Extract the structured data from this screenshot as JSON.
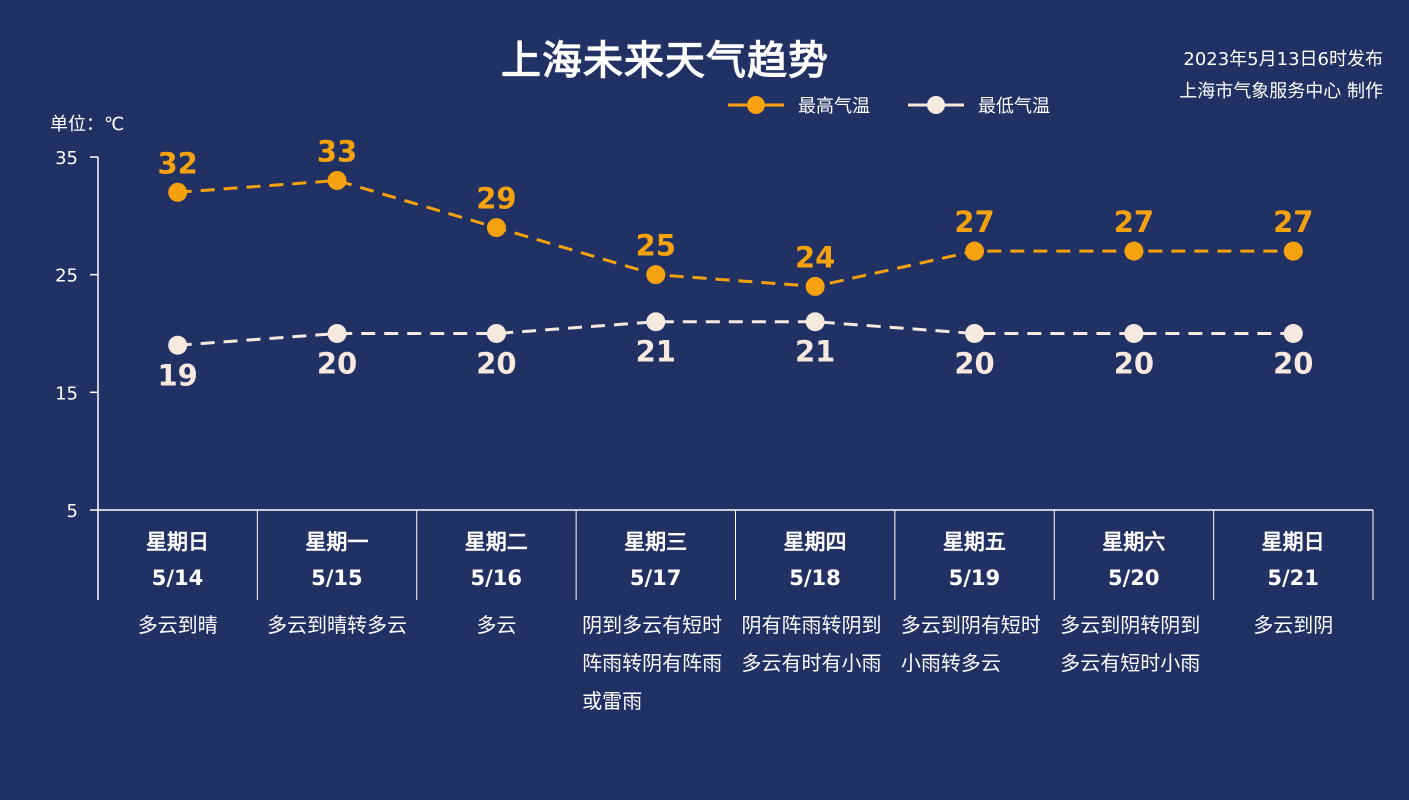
{
  "title": "上海未来天气趋势",
  "publish": {
    "time": "2023年5月13日6时发布",
    "producer": "上海市气象服务中心 制作"
  },
  "legend": {
    "high": "最高气温",
    "low": "最低气温"
  },
  "unit_label": "单位：℃",
  "colors": {
    "background": "#223164",
    "high": "#F5A20E",
    "low": "#F6E9DF",
    "axis": "#FFFFFF"
  },
  "days": [
    {
      "weekday": "星期日",
      "date": "5/14",
      "desc": "多云到晴"
    },
    {
      "weekday": "星期一",
      "date": "5/15",
      "desc": "多云到晴转多云"
    },
    {
      "weekday": "星期二",
      "date": "5/16",
      "desc": "多云"
    },
    {
      "weekday": "星期三",
      "date": "5/17",
      "desc": "阴到多云有短时阵雨转阴有阵雨或雷雨"
    },
    {
      "weekday": "星期四",
      "date": "5/18",
      "desc": "阴有阵雨转阴到多云有时有小雨"
    },
    {
      "weekday": "星期五",
      "date": "5/19",
      "desc": "多云到阴有短时小雨转多云"
    },
    {
      "weekday": "星期六",
      "date": "5/20",
      "desc": "多云到阴转阴到多云有短时小雨"
    },
    {
      "weekday": "星期日",
      "date": "5/21",
      "desc": "多云到阴"
    }
  ],
  "chart_data": {
    "type": "line",
    "title": "上海未来天气趋势",
    "categories": [
      "5/14",
      "5/15",
      "5/16",
      "5/17",
      "5/18",
      "5/19",
      "5/20",
      "5/21"
    ],
    "series": [
      {
        "name": "最高气温",
        "values": [
          32,
          33,
          29,
          25,
          24,
          27,
          27,
          27
        ]
      },
      {
        "name": "最低气温",
        "values": [
          19,
          20,
          20,
          21,
          21,
          20,
          20,
          20
        ]
      }
    ],
    "ylabel": "单位：℃",
    "ylim": [
      5,
      35
    ],
    "yticks": [
      5,
      15,
      25,
      35
    ],
    "line_style": "dashed",
    "legend_position": "top-right",
    "grid": false
  }
}
